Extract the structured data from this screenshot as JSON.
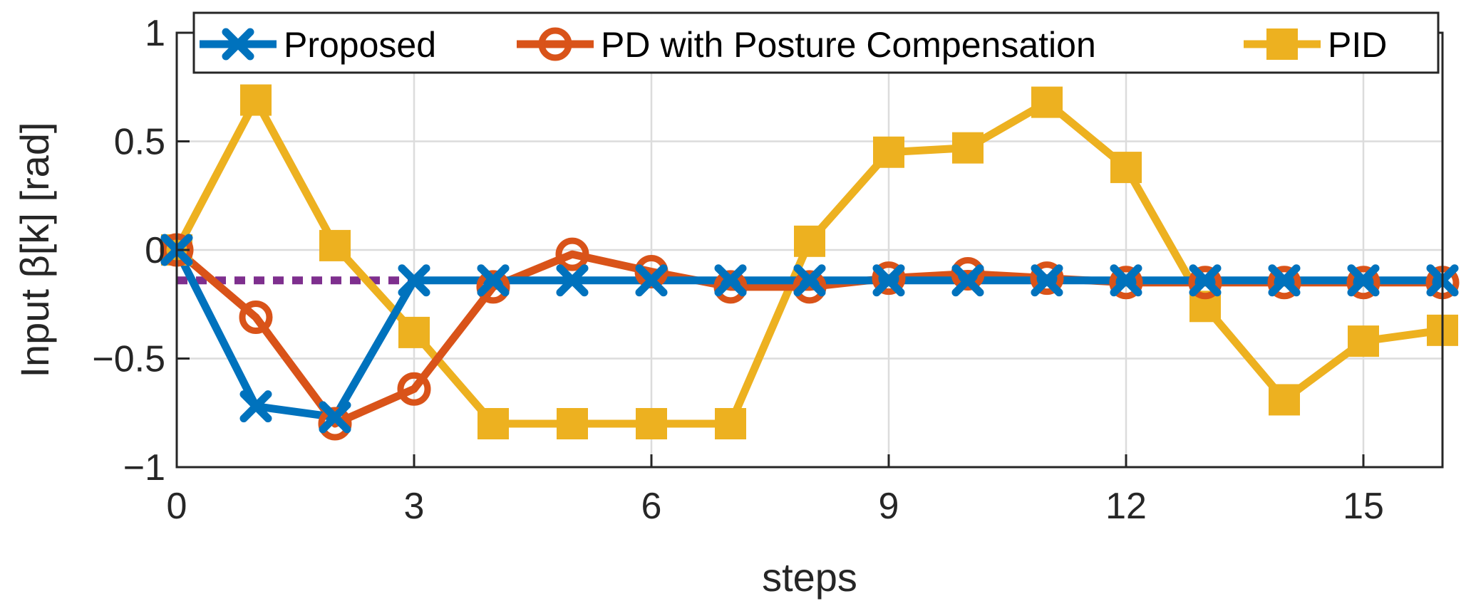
{
  "chart_data": {
    "type": "line",
    "xlabel": "steps",
    "ylabel": "Input β[k] [rad]",
    "xlim": [
      0,
      16
    ],
    "ylim": [
      -1,
      1
    ],
    "xticks": [
      0,
      3,
      6,
      9,
      12,
      15
    ],
    "xtick_labels": [
      "0",
      "3",
      "6",
      "9",
      "12",
      "15"
    ],
    "yticks": [
      -1,
      -0.5,
      0,
      0.5,
      1
    ],
    "ytick_labels": [
      "−1",
      "−0.5",
      "0",
      "0.5",
      "1"
    ],
    "grid": true,
    "legend_position": "top",
    "x": [
      0,
      1,
      2,
      3,
      4,
      5,
      6,
      7,
      8,
      9,
      10,
      11,
      12,
      13,
      14,
      15,
      16
    ],
    "series": [
      {
        "name": "Proposed",
        "color": "#0072BD",
        "marker": "x",
        "values": [
          0,
          -0.72,
          -0.77,
          -0.14,
          -0.14,
          -0.14,
          -0.14,
          -0.14,
          -0.14,
          -0.14,
          -0.14,
          -0.14,
          -0.14,
          -0.14,
          -0.14,
          -0.14,
          -0.14
        ]
      },
      {
        "name": "PD with Posture Compensation",
        "color": "#D95319",
        "marker": "circle",
        "values": [
          0,
          -0.31,
          -0.8,
          -0.64,
          -0.17,
          -0.02,
          -0.1,
          -0.17,
          -0.17,
          -0.13,
          -0.11,
          -0.13,
          -0.15,
          -0.15,
          -0.15,
          -0.15,
          -0.15
        ]
      },
      {
        "name": "PID",
        "color": "#EDB120",
        "marker": "square",
        "values": [
          0,
          0.69,
          0.02,
          -0.38,
          -0.8,
          -0.8,
          -0.8,
          -0.8,
          0.04,
          0.45,
          0.47,
          0.68,
          0.38,
          -0.26,
          -0.69,
          -0.42,
          -0.37
        ]
      }
    ],
    "reference_line": {
      "color": "#7E2F8E",
      "style": "dotted",
      "x": [
        0,
        3
      ],
      "y": [
        -0.14,
        -0.14
      ]
    }
  }
}
